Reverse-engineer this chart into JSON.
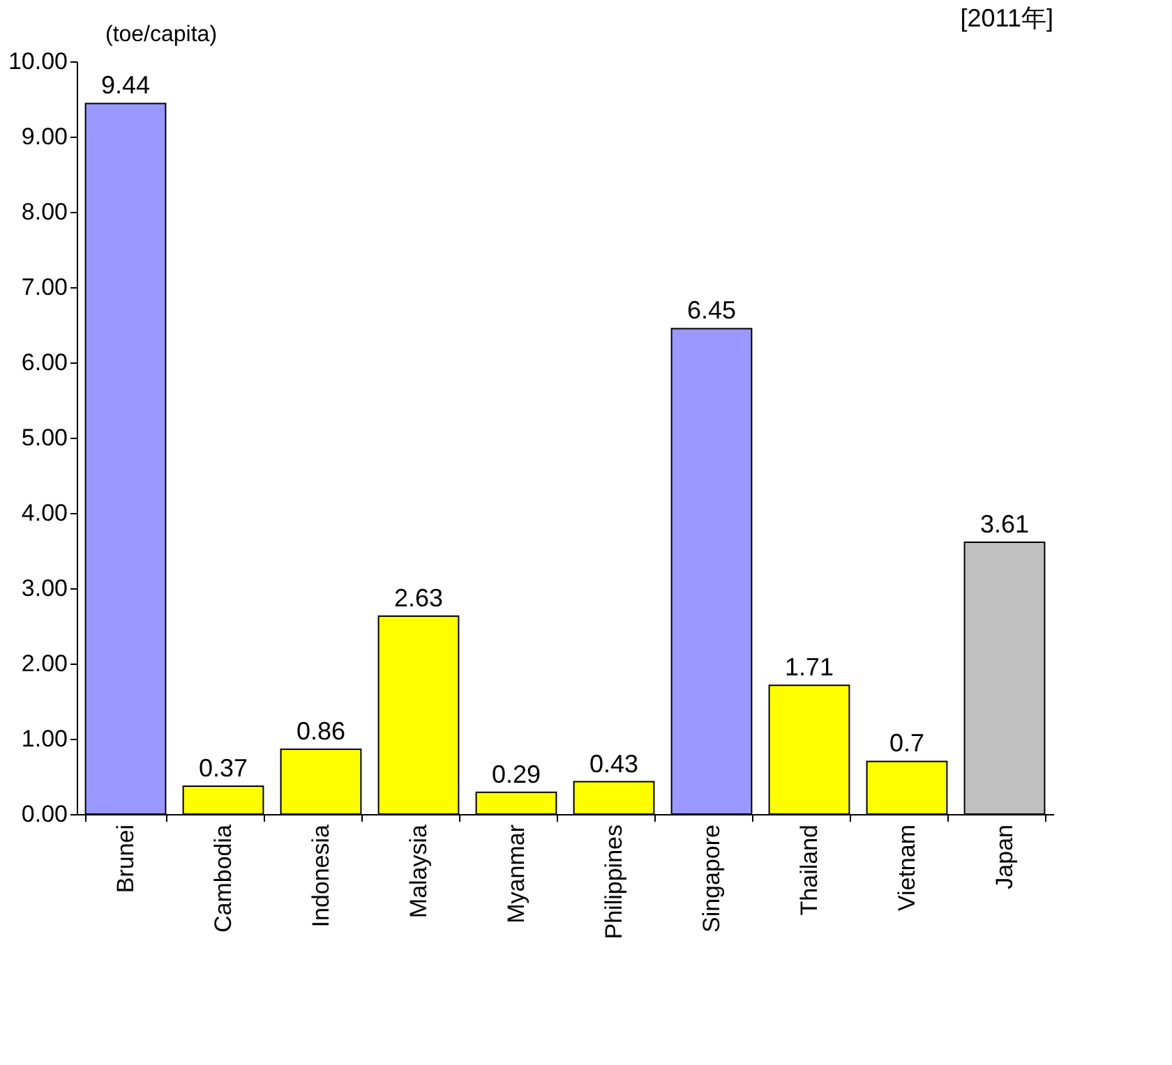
{
  "chart_data": {
    "type": "bar",
    "categories": [
      "Brunei",
      "Cambodia",
      "Indonesia",
      "Malaysia",
      "Myanmar",
      "Philippines",
      "Singapore",
      "Thailand",
      "Vietnam",
      "Japan"
    ],
    "values": [
      9.44,
      0.37,
      0.86,
      2.63,
      0.29,
      0.43,
      6.45,
      1.71,
      0.7,
      3.61
    ],
    "colors": [
      "#9999ff",
      "#ffff00",
      "#ffff00",
      "#ffff00",
      "#ffff00",
      "#ffff00",
      "#9999ff",
      "#ffff00",
      "#ffff00",
      "#c0c0c0"
    ],
    "ylabel": "(toe/capita)",
    "annotations": [
      "[2011年]"
    ],
    "ylim": [
      0,
      10
    ],
    "yticks": [
      {
        "value": 0,
        "label": "0.00"
      },
      {
        "value": 1,
        "label": "1.00"
      },
      {
        "value": 2,
        "label": "2.00"
      },
      {
        "value": 3,
        "label": "3.00"
      },
      {
        "value": 4,
        "label": "4.00"
      },
      {
        "value": 5,
        "label": "5.00"
      },
      {
        "value": 6,
        "label": "6.00"
      },
      {
        "value": 7,
        "label": "7.00"
      },
      {
        "value": 8,
        "label": "8.00"
      },
      {
        "value": 9,
        "label": "9.00"
      },
      {
        "value": 10,
        "label": "10.00"
      }
    ],
    "data_labels": true,
    "grid": false
  }
}
